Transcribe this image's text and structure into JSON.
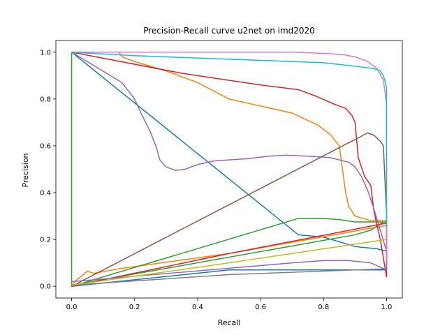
{
  "chart_data": {
    "type": "line",
    "title": "Precision-Recall curve u2net on imd2020",
    "xlabel": "Recall",
    "ylabel": "Precision",
    "xlim": [
      -0.05,
      1.05
    ],
    "ylim": [
      -0.05,
      1.05
    ],
    "xticks": [
      0.0,
      0.2,
      0.4,
      0.6,
      0.8,
      1.0
    ],
    "yticks": [
      0.0,
      0.2,
      0.4,
      0.6,
      0.8,
      1.0
    ],
    "xtick_labels": [
      "0.0",
      "0.2",
      "0.4",
      "0.6",
      "0.8",
      "1.0"
    ],
    "ytick_labels": [
      "0.0",
      "0.2",
      "0.4",
      "0.6",
      "0.8",
      "1.0"
    ],
    "grid": false,
    "legend": "none",
    "series": [
      {
        "color": "#1f77b4",
        "points": [
          [
            0,
            1.0
          ],
          [
            0.72,
            0.22
          ],
          [
            0.8,
            0.21
          ],
          [
            0.9,
            0.17
          ],
          [
            0.97,
            0.16
          ],
          [
            1.0,
            0.15
          ],
          [
            1.0,
            0.07
          ],
          [
            0.5,
            0.07
          ],
          [
            0,
            0.0
          ]
        ]
      },
      {
        "color": "#ff7f0e",
        "points": [
          [
            0,
            1.0
          ],
          [
            0.15,
            1.0
          ],
          [
            0.16,
            0.98
          ],
          [
            0.2,
            0.96
          ],
          [
            0.25,
            0.94
          ],
          [
            0.3,
            0.92
          ],
          [
            0.4,
            0.87
          ],
          [
            0.5,
            0.8
          ],
          [
            0.6,
            0.77
          ],
          [
            0.7,
            0.74
          ],
          [
            0.78,
            0.69
          ],
          [
            0.82,
            0.65
          ],
          [
            0.85,
            0.6
          ],
          [
            0.86,
            0.5
          ],
          [
            0.87,
            0.4
          ],
          [
            0.88,
            0.34
          ],
          [
            0.9,
            0.3
          ],
          [
            0.95,
            0.28
          ],
          [
            1.0,
            0.28
          ],
          [
            1.0,
            0.26
          ],
          [
            0.5,
            0.14
          ],
          [
            0.15,
            0.075
          ],
          [
            0.07,
            0.055
          ],
          [
            0.05,
            0.065
          ],
          [
            0.01,
            0.02
          ],
          [
            0,
            0.0
          ]
        ]
      },
      {
        "color": "#2ca02c",
        "points": [
          [
            0,
            1.0
          ],
          [
            0,
            0.0
          ],
          [
            0.72,
            0.29
          ],
          [
            0.8,
            0.29
          ],
          [
            0.85,
            0.285
          ],
          [
            0.9,
            0.275
          ],
          [
            1.0,
            0.275
          ],
          [
            0.99,
            0.275
          ],
          [
            0.95,
            0.24
          ],
          [
            0.9,
            0.22
          ],
          [
            0,
            0.005
          ]
        ]
      },
      {
        "color": "#d62728",
        "points": [
          [
            0,
            1.0
          ],
          [
            0.35,
            0.91
          ],
          [
            0.6,
            0.86
          ],
          [
            0.72,
            0.84
          ],
          [
            0.78,
            0.81
          ],
          [
            0.83,
            0.78
          ],
          [
            0.87,
            0.76
          ],
          [
            0.89,
            0.73
          ],
          [
            0.9,
            0.7
          ],
          [
            0.91,
            0.55
          ],
          [
            0.93,
            0.47
          ],
          [
            0.95,
            0.43
          ],
          [
            0.96,
            0.32
          ],
          [
            0.98,
            0.2
          ],
          [
            1.0,
            0.04
          ],
          [
            1.0,
            0.27
          ],
          [
            0.5,
            0.14
          ],
          [
            0,
            0.0
          ]
        ]
      },
      {
        "color": "#9467bd",
        "points": [
          [
            0,
            1.0
          ],
          [
            0.16,
            0.87
          ],
          [
            0.2,
            0.8
          ],
          [
            0.22,
            0.74
          ],
          [
            0.25,
            0.66
          ],
          [
            0.27,
            0.59
          ],
          [
            0.28,
            0.54
          ],
          [
            0.3,
            0.51
          ],
          [
            0.33,
            0.495
          ],
          [
            0.36,
            0.5
          ],
          [
            0.4,
            0.52
          ],
          [
            0.45,
            0.535
          ],
          [
            0.5,
            0.54
          ],
          [
            0.56,
            0.545
          ],
          [
            0.62,
            0.555
          ],
          [
            0.68,
            0.56
          ],
          [
            0.76,
            0.555
          ],
          [
            0.82,
            0.55
          ],
          [
            0.88,
            0.53
          ],
          [
            0.9,
            0.51
          ],
          [
            0.92,
            0.47
          ],
          [
            0.94,
            0.41
          ],
          [
            0.96,
            0.33
          ],
          [
            0.98,
            0.24
          ],
          [
            1.0,
            0.15
          ],
          [
            1.0,
            0.07
          ],
          [
            0.95,
            0.1
          ],
          [
            0.88,
            0.11
          ],
          [
            0.8,
            0.11
          ],
          [
            0.7,
            0.1
          ],
          [
            0,
            0.02
          ]
        ]
      },
      {
        "color": "#8c564b",
        "points": [
          [
            0,
            0.0
          ],
          [
            0.94,
            0.655
          ],
          [
            0.96,
            0.645
          ],
          [
            0.98,
            0.62
          ],
          [
            0.99,
            0.6
          ],
          [
            1.0,
            0.3
          ],
          [
            1.0,
            0.1
          ]
        ]
      },
      {
        "color": "#e377c2",
        "points": [
          [
            0,
            1.0
          ],
          [
            0.5,
            1.0
          ],
          [
            0.7,
            1.0
          ],
          [
            0.8,
            0.995
          ],
          [
            0.86,
            0.99
          ],
          [
            0.9,
            0.98
          ],
          [
            0.94,
            0.96
          ],
          [
            0.97,
            0.93
          ],
          [
            0.99,
            0.88
          ],
          [
            1.0,
            0.78
          ],
          [
            1.0,
            0.1
          ]
        ]
      },
      {
        "color": "#7f7f7f",
        "points": [
          [
            0,
            0.005
          ],
          [
            0.5,
            0.05
          ],
          [
            1.0,
            0.075
          ]
        ]
      },
      {
        "color": "#bcbd22",
        "points": [
          [
            0,
            0.005
          ],
          [
            0.5,
            0.1
          ],
          [
            1.0,
            0.2
          ]
        ]
      },
      {
        "color": "#17becf",
        "points": [
          [
            0,
            1.0
          ],
          [
            0.2,
            0.985
          ],
          [
            0.4,
            0.975
          ],
          [
            0.6,
            0.965
          ],
          [
            0.8,
            0.955
          ],
          [
            0.9,
            0.94
          ],
          [
            0.96,
            0.93
          ],
          [
            0.98,
            0.92
          ],
          [
            0.99,
            0.9
          ],
          [
            1.0,
            0.85
          ],
          [
            1.0,
            0.25
          ]
        ]
      }
    ]
  }
}
